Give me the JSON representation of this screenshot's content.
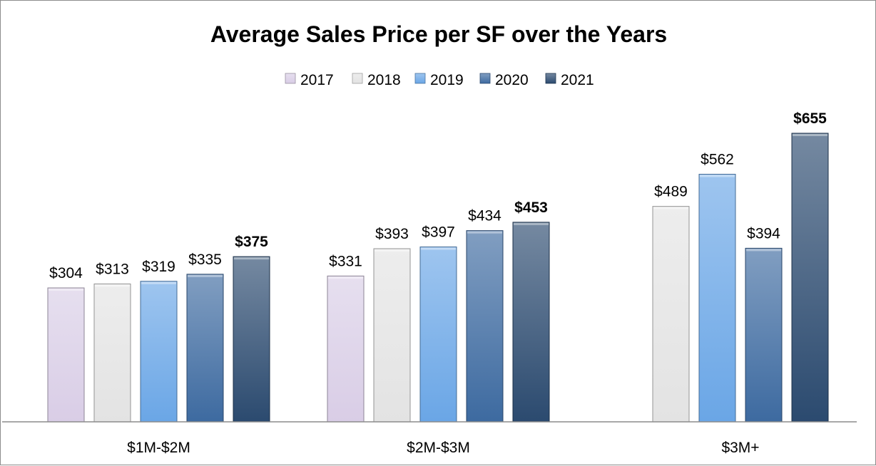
{
  "chart_data": {
    "type": "bar",
    "title": "Average Sales Price per SF over the Years",
    "categories": [
      "$1M-$2M",
      "$2M-$3M",
      "$3M+"
    ],
    "series": [
      {
        "name": "2017",
        "values": [
          304,
          331,
          null
        ],
        "labels": [
          "$304",
          "$331",
          ""
        ],
        "color": "#d9cde6",
        "bold": false
      },
      {
        "name": "2018",
        "values": [
          313,
          393,
          489
        ],
        "labels": [
          "$313",
          "$393",
          "$489"
        ],
        "color": "#e3e3e3",
        "bold": false
      },
      {
        "name": "2019",
        "values": [
          319,
          397,
          562
        ],
        "labels": [
          "$319",
          "$397",
          "$562"
        ],
        "color": "#6aa6e6",
        "bold": false
      },
      {
        "name": "2020",
        "values": [
          335,
          434,
          394
        ],
        "labels": [
          "$335",
          "$434",
          "$394"
        ],
        "color": "#3d6aa0",
        "bold": false
      },
      {
        "name": "2021",
        "values": [
          375,
          453,
          655
        ],
        "labels": [
          "$375",
          "$453",
          "$655"
        ],
        "color": "#2b4a6f",
        "bold": true
      }
    ],
    "ylim": [
      0,
      700
    ],
    "grid": false,
    "legend_position": "top"
  }
}
